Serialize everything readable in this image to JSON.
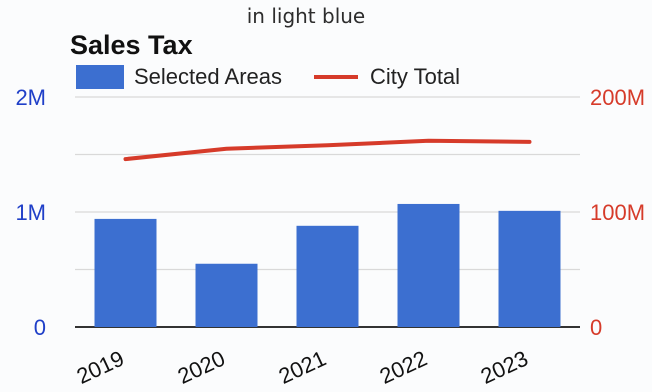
{
  "caption": "in light blue",
  "chart_data": {
    "type": "bar",
    "title": "Sales Tax",
    "categories": [
      "2019",
      "2020",
      "2021",
      "2022",
      "2023"
    ],
    "series": [
      {
        "name": "Selected Areas",
        "type": "bar",
        "axis": "left",
        "color": "#3c6fd0",
        "values": [
          940000,
          550000,
          880000,
          1070000,
          1010000
        ]
      },
      {
        "name": "City Total",
        "type": "line",
        "axis": "right",
        "color": "#d63b2a",
        "values": [
          146000000,
          155000000,
          158000000,
          162000000,
          161000000
        ]
      }
    ],
    "y_left": {
      "ylim": [
        0,
        2000000
      ],
      "ticks": [
        0,
        1000000,
        2000000
      ],
      "tick_labels": [
        "0",
        "1M",
        "2M"
      ],
      "color": "#1f3fc8"
    },
    "y_right": {
      "ylim": [
        0,
        200000000
      ],
      "ticks": [
        0,
        100000000,
        200000000
      ],
      "tick_labels": [
        "0",
        "100M",
        "200M"
      ],
      "color": "#d63b2a"
    },
    "grid": true,
    "legend": "top-left"
  }
}
